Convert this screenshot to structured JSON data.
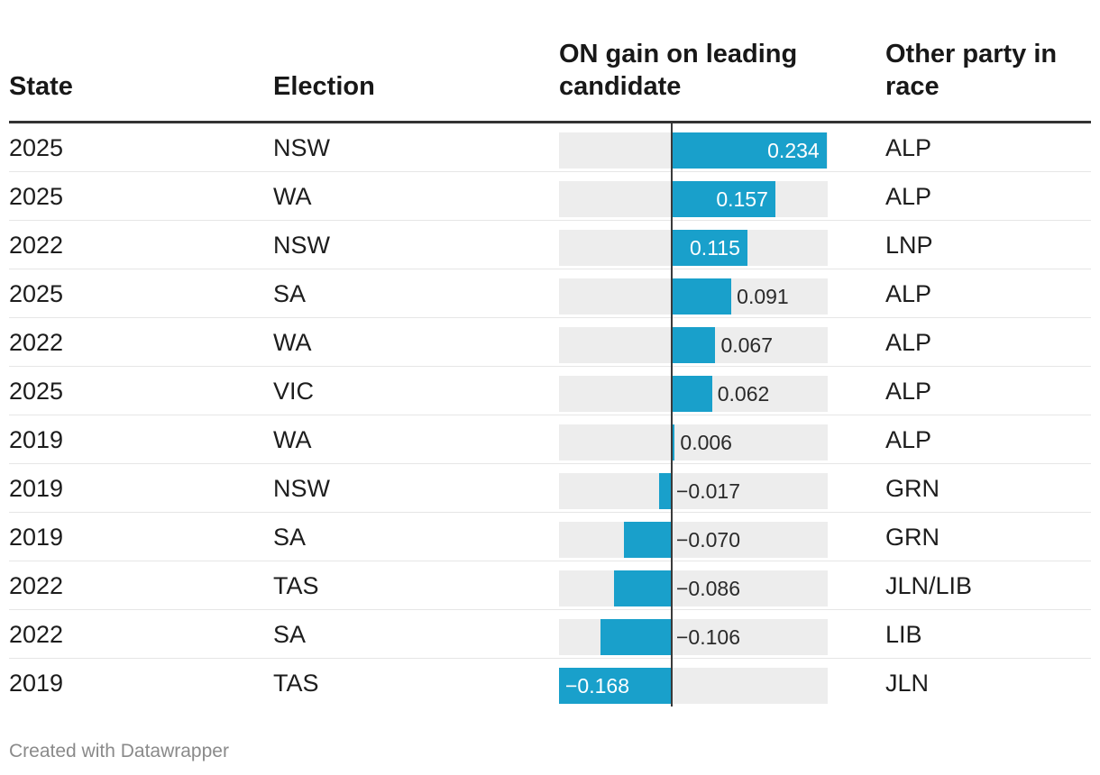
{
  "table": {
    "headers": {
      "state": "State",
      "election": "Election",
      "gain": "ON gain on leading candidate",
      "party": "Other party in race"
    },
    "footer": "Created with Datawrapper"
  },
  "chart_data": {
    "type": "bar",
    "title": "ON gain on leading candidate",
    "xlim": [
      -0.168,
      0.234
    ],
    "colors": {
      "bar": "#19a0cb",
      "track": "#ededed"
    },
    "rows": [
      {
        "state": "2025",
        "election": "NSW",
        "value": 0.234,
        "label": "0.234",
        "party": "ALP"
      },
      {
        "state": "2025",
        "election": "WA",
        "value": 0.157,
        "label": "0.157",
        "party": "ALP"
      },
      {
        "state": "2022",
        "election": "NSW",
        "value": 0.115,
        "label": "0.115",
        "party": "LNP"
      },
      {
        "state": "2025",
        "election": "SA",
        "value": 0.091,
        "label": "0.091",
        "party": "ALP"
      },
      {
        "state": "2022",
        "election": "WA",
        "value": 0.067,
        "label": "0.067",
        "party": "ALP"
      },
      {
        "state": "2025",
        "election": "VIC",
        "value": 0.062,
        "label": "0.062",
        "party": "ALP"
      },
      {
        "state": "2019",
        "election": "WA",
        "value": 0.006,
        "label": "0.006",
        "party": "ALP"
      },
      {
        "state": "2019",
        "election": "NSW",
        "value": -0.017,
        "label": "−0.017",
        "party": "GRN"
      },
      {
        "state": "2019",
        "election": "SA",
        "value": -0.07,
        "label": "−0.070",
        "party": "GRN"
      },
      {
        "state": "2022",
        "election": "TAS",
        "value": -0.086,
        "label": "−0.086",
        "party": "JLN/LIB"
      },
      {
        "state": "2022",
        "election": "SA",
        "value": -0.106,
        "label": "−0.106",
        "party": "LIB"
      },
      {
        "state": "2019",
        "election": "TAS",
        "value": -0.168,
        "label": "−0.168",
        "party": "JLN"
      }
    ]
  }
}
